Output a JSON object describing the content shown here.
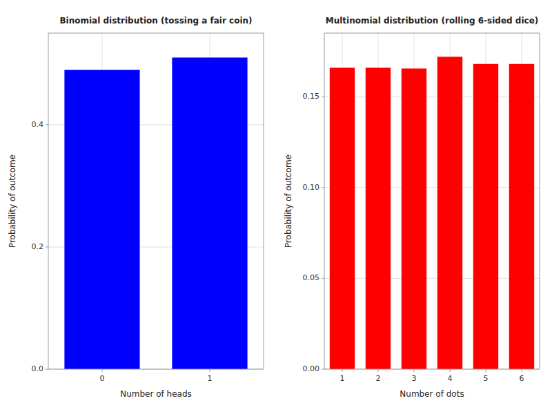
{
  "chart_data": [
    {
      "type": "bar",
      "title": "Binomial distribution (tossing a fair coin)",
      "x_label": "Number of heads",
      "y_label": "Probability of outcome",
      "categories": [
        "0",
        "1"
      ],
      "values": [
        0.49,
        0.51
      ],
      "color": "#0000FF",
      "ylim": [
        0,
        0.55
      ],
      "yticks": [
        {
          "value": 0.0,
          "label": "0.0"
        },
        0.2,
        0.4
      ],
      "grid": true
    },
    {
      "type": "bar",
      "title": "Multinomial distribution (rolling 6-sided dice)",
      "x_label": "Number of dots",
      "y_label": "Probability of outcome",
      "categories": [
        "1",
        "2",
        "3",
        "4",
        "5",
        "6"
      ],
      "values": [
        0.166,
        0.166,
        0.1655,
        0.172,
        0.168,
        0.168
      ],
      "color": "#FF0000",
      "ylim": [
        0,
        0.185
      ],
      "yticks": [
        {
          "value": 0.0,
          "label": "0.00"
        },
        {
          "value": 0.05,
          "label": "0.05"
        },
        {
          "value": 0.1,
          "label": "0.10"
        },
        {
          "value": 0.15,
          "label": "0.15"
        }
      ],
      "grid": true
    }
  ]
}
